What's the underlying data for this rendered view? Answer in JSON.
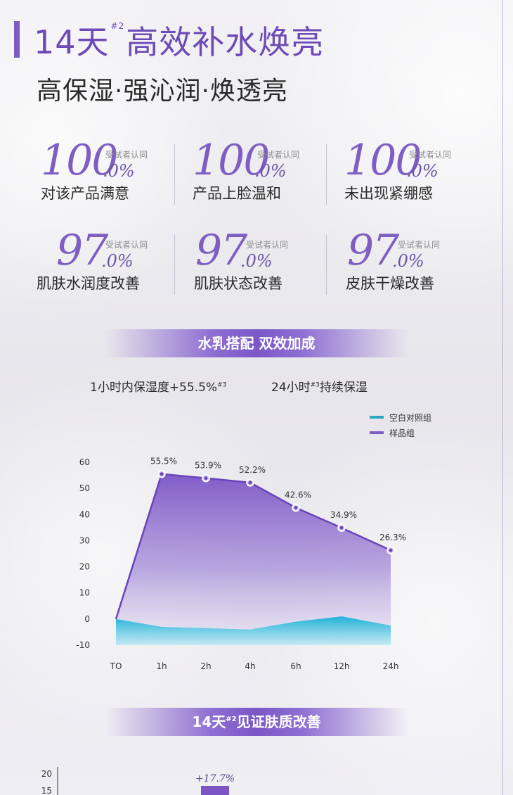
{
  "header": {
    "title_prefix": "14天",
    "title_sup": "#2",
    "title_suffix": "高效补水焕亮",
    "subtitle": "高保湿·强沁润·焕透亮"
  },
  "stats": [
    {
      "value": "100",
      "decimal": ".0%",
      "note": "受试者认同",
      "label": "对该产品满意"
    },
    {
      "value": "100",
      "decimal": ".0%",
      "note": "受试者认同",
      "label": "产品上脸温和"
    },
    {
      "value": "100",
      "decimal": ".0%",
      "note": "受试者认同",
      "label": "未出现紧绷感"
    },
    {
      "value": "97",
      "decimal": ".0%",
      "note": "受试者认同",
      "label": "肌肤水润度改善"
    },
    {
      "value": "97",
      "decimal": ".0%",
      "note": "受试者认同",
      "label": "肌肤状态改善"
    },
    {
      "value": "97",
      "decimal": ".0%",
      "note": "受试者认同",
      "label": "皮肤干燥改善"
    }
  ],
  "banner1": {
    "text": "水乳搭配 双效加成"
  },
  "chart_sub": {
    "left_text": "1小时内保湿度+55.5%",
    "left_sup": "#3",
    "right_prefix": "24小时",
    "right_sup": "#3",
    "right_suffix": "持续保湿"
  },
  "colors": {
    "accent": "#7c5cc4",
    "control": "#2cb4d6",
    "sample": "#7d5fc3"
  },
  "chart_data": {
    "type": "area",
    "categories": [
      "TO",
      "1h",
      "2h",
      "4h",
      "6h",
      "12h",
      "24h"
    ],
    "ylim": [
      -10,
      60
    ],
    "yticks": [
      60,
      50,
      40,
      30,
      20,
      10,
      0,
      -10
    ],
    "grid": true,
    "legend_position": "top-right",
    "series": [
      {
        "name": "空白对照组",
        "values": [
          0,
          -3,
          -3.5,
          -4,
          -1,
          1,
          -2.5
        ],
        "labels": []
      },
      {
        "name": "样品组",
        "values": [
          0,
          55.5,
          53.9,
          52.2,
          42.6,
          34.9,
          26.3
        ],
        "labels": [
          "",
          "55.5%",
          "53.9%",
          "52.2%",
          "42.6%",
          "34.9%",
          "26.3%"
        ]
      }
    ]
  },
  "banner2": {
    "prefix": "14天",
    "sup": "#2",
    "suffix": "见证肤质改善"
  },
  "chart2_data": {
    "type": "bar",
    "yticks": [
      20,
      15
    ],
    "label": "+17.7%"
  }
}
